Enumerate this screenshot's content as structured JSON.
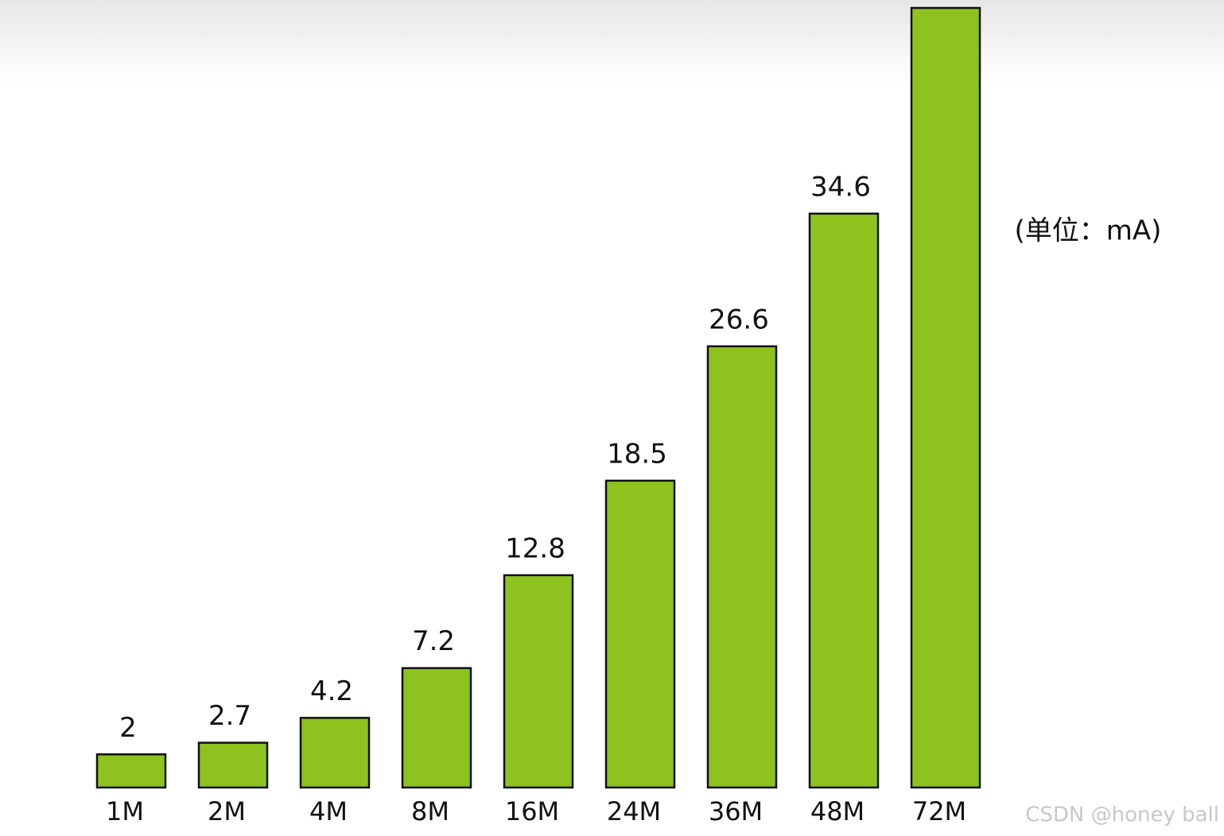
{
  "chart_data": {
    "type": "bar",
    "categories": [
      "1M",
      "2M",
      "4M",
      "8M",
      "16M",
      "24M",
      "36M",
      "48M",
      "72M"
    ],
    "values": [
      2,
      2.7,
      4.2,
      7.2,
      12.8,
      18.5,
      26.6,
      34.6,
      47
    ],
    "value_labels": [
      "2",
      "2.7",
      "4.2",
      "7.2",
      "12.8",
      "18.5",
      "26.6",
      "34.6",
      null
    ],
    "color": "#8dc21f",
    "ylim": [
      0,
      47
    ],
    "annotation": "(单位：mA)",
    "watermark": "CSDN @honey ball"
  }
}
